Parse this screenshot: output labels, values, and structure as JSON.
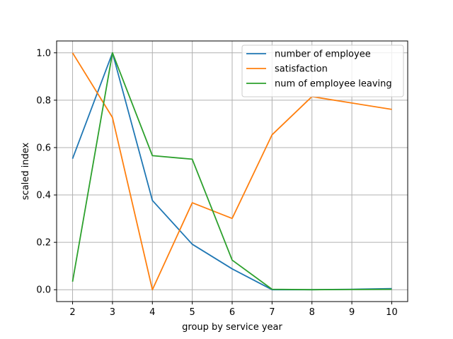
{
  "chart_data": {
    "type": "line",
    "title": "",
    "xlabel": "group by service year",
    "ylabel": "scaled index",
    "x": [
      2,
      3,
      4,
      5,
      6,
      7,
      8,
      9,
      10
    ],
    "xlim": [
      1.6,
      10.4
    ],
    "ylim": [
      -0.05,
      1.05
    ],
    "xticks": [
      2,
      3,
      4,
      5,
      6,
      7,
      8,
      9,
      10
    ],
    "yticks": [
      "0.0",
      "0.2",
      "0.4",
      "0.6",
      "0.8",
      "1.0"
    ],
    "grid": true,
    "legend_position": "top-right",
    "series": [
      {
        "name": "number of employee",
        "color": "#1f77b4",
        "values": [
          0.553,
          1.0,
          0.377,
          0.192,
          0.088,
          0.0,
          0.0,
          0.002,
          0.005
        ]
      },
      {
        "name": "satisfaction",
        "color": "#ff7f0e",
        "values": [
          1.0,
          0.727,
          0.0,
          0.367,
          0.301,
          0.654,
          0.815,
          null,
          0.761
        ]
      },
      {
        "name": "num of employee leaving",
        "color": "#2ca02c",
        "values": [
          0.034,
          1.0,
          0.566,
          0.551,
          0.125,
          0.002,
          0.0,
          0.001,
          0.002
        ]
      }
    ]
  }
}
